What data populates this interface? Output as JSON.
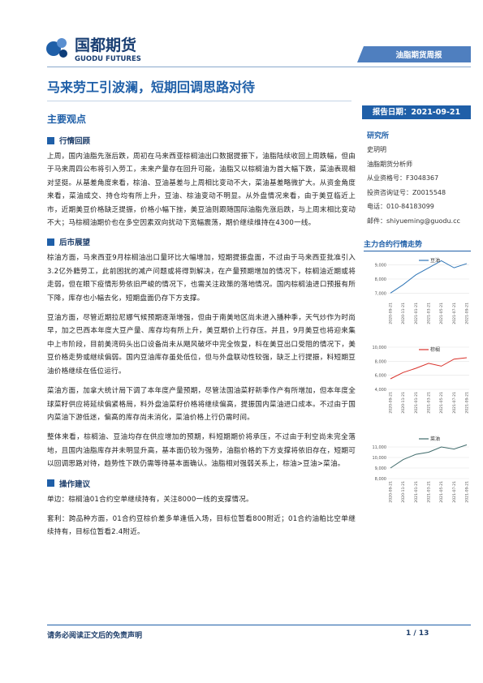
{
  "header": {
    "company": "国都期货",
    "company_en": "GUODU FUTURES",
    "report_type": "油脂期货周报"
  },
  "title": "马来劳工引波澜，短期回调思路对待",
  "main_heading": "主要观点",
  "sections": [
    {
      "heading": "行情回顾",
      "paragraphs": [
        "上周，国内油脂先涨后跌，周初在马来西亚棕榈油出口数据提振下，油脂陆续收回上周跌幅，但由于马来周四公布将引入劳工，未来产量存在回升可能，油脂又以棕榈油为首大幅下跌，菜油表现相对坚挺。从基差角度来看，棕油、豆油基差与上周相比变动不大，菜油基差略微扩大。从资金角度来看，菜油成交、持仓均有所上升，豆油、棕油变动不明显。从外盘情况来看，由于美豆临近上市，近期美豆价格缺乏提振，价格小幅下挫，美豆油则跟随国际油脂先涨后跌，与上周末相比变动不大；马棕榈油期价也在多空因素双向扰动下宽幅震荡，期价继续维持在4300一线。"
      ]
    },
    {
      "heading": "后市展望",
      "paragraphs": [
        "棕油方面，马来西亚9月棕榈油出口量环比大幅增加，短期提振盘面，不过由于马来西亚批准引入3.2亿外籍劳工，此前困扰的减产问题或将得到解决，在产量预期增加的情况下，棕榈油近期或将走弱，但在眼下疫情形势依旧严峻的情况下，也需关注政策的落地情况。国内棕榈油进口预报有所下降，库存也小幅去化，短期盘面仍存下方支撑。",
        "豆油方面，尽管近期拉尼娜气候预期逐渐增强，但由于南美地区尚未进入播种季，天气炒作为时尚早，加之巴西本年度大豆产量、库存均有所上升，美豆期价上行存压。并且，9月美豆也将迎来集中上市阶段，目前美湾码头出口设备尚未从飓风破坏中完全恢复，料在美豆出口受阻的情况下，美豆价格走势或继续偏弱。国内豆油库存虽处低位，但与外盘联动性较强，缺乏上行提振，料短期豆油价格继续在低位运行。",
        "菜油方面，加拿大统计局下调了本年度产量预期，尽管法国油菜籽新季作产有所增加，但本年度全球菜籽供应将延续偏紧格局，料外盘油菜籽价格将继续偏高，提振国内菜油进口成本。不过由于国内菜油下游低迷，偏高的库存尚未消化，菜油价格上行仍需时间。",
        "整体来看，棕榈油、豆油均存在供应增加的预期，料短期期价将承压，不过由于利空尚未完全落地，且国内油脂库存并未明显升高，基本面仍较为强势，油脂价格的下方支撑将依旧存在，短期可以回调思路对待，趋势性下跌仍需等待基本面确认。油脂相对强弱关系上，棕油>豆油>菜油。"
      ]
    },
    {
      "heading": "操作建议",
      "paragraphs": [
        "单边：棕榈油01合约空单继续持有，关注8000一线的支撑情况。",
        "套利：跨品种方面，01合约豆棕价差多单逢低入场，目标位暂看800附近；01合约油粕比空单继续持有，目标位暂看2.4附近。"
      ]
    }
  ],
  "report_date": "报告日期：2021-09-21",
  "institute": {
    "heading": "研究所",
    "lines": [
      "史玥明",
      "油脂期货分析师",
      "从业资格号：F3048367",
      "投资咨询证号：Z0015548",
      "电话：010-84183099",
      "邮件：shiyueming@guodu.cc"
    ]
  },
  "charts_heading": "主力合约行情走势",
  "chart_data": [
    {
      "type": "line",
      "categories": [
        "2020-09-21",
        "2020-11-21",
        "2021-01-21",
        "2021-03-21",
        "2021-05-21",
        "2021-07-21",
        "2021-09-21"
      ],
      "series": [
        {
          "name": "豆油",
          "color": "#2e75b6",
          "values": [
            7000,
            7600,
            8300,
            8800,
            9300,
            8800,
            9100
          ]
        }
      ],
      "ylim": [
        6500,
        9500
      ],
      "yticks": [
        {
          "value": 7000,
          "label": "7,000"
        },
        {
          "value": 8000,
          "label": "8,000"
        },
        {
          "value": 9000,
          "label": "9,000"
        }
      ]
    },
    {
      "type": "line",
      "categories": [
        "2020-09-21",
        "2020-11-21",
        "2021-01-21",
        "2021-03-21",
        "2021-05-21",
        "2021-07-21",
        "2021-09-21"
      ],
      "series": [
        {
          "name": "棕榈",
          "color": "#d9322b",
          "values": [
            5500,
            6400,
            7000,
            7700,
            7300,
            8300,
            8500
          ]
        }
      ],
      "ylim": [
        4000,
        10000
      ],
      "yticks": [
        {
          "value": 4000,
          "label": "4,000"
        },
        {
          "value": 6000,
          "label": "6,000"
        },
        {
          "value": 8000,
          "label": "8,000"
        },
        {
          "value": 10000,
          "label": "10,000"
        }
      ]
    },
    {
      "type": "line",
      "categories": [
        "2020-09-21",
        "2020-11-21",
        "2021-01-21",
        "2021-03-21",
        "2021-05-21",
        "2021-07-21",
        "2021-09-21"
      ],
      "series": [
        {
          "name": "菜油",
          "color": "#3f6b6b",
          "values": [
            9000,
            9800,
            10300,
            10500,
            11000,
            10800,
            11200
          ]
        }
      ],
      "ylim": [
        8000,
        12000
      ],
      "yticks": [
        {
          "value": 8000,
          "label": "8,000"
        },
        {
          "value": 9000,
          "label": "9,000"
        },
        {
          "value": 10000,
          "label": "10,000"
        },
        {
          "value": 11000,
          "label": "11,000"
        }
      ]
    }
  ],
  "footer": {
    "disclaimer": "请务必阅读正文后的免责声明",
    "page": "1 / 13"
  }
}
